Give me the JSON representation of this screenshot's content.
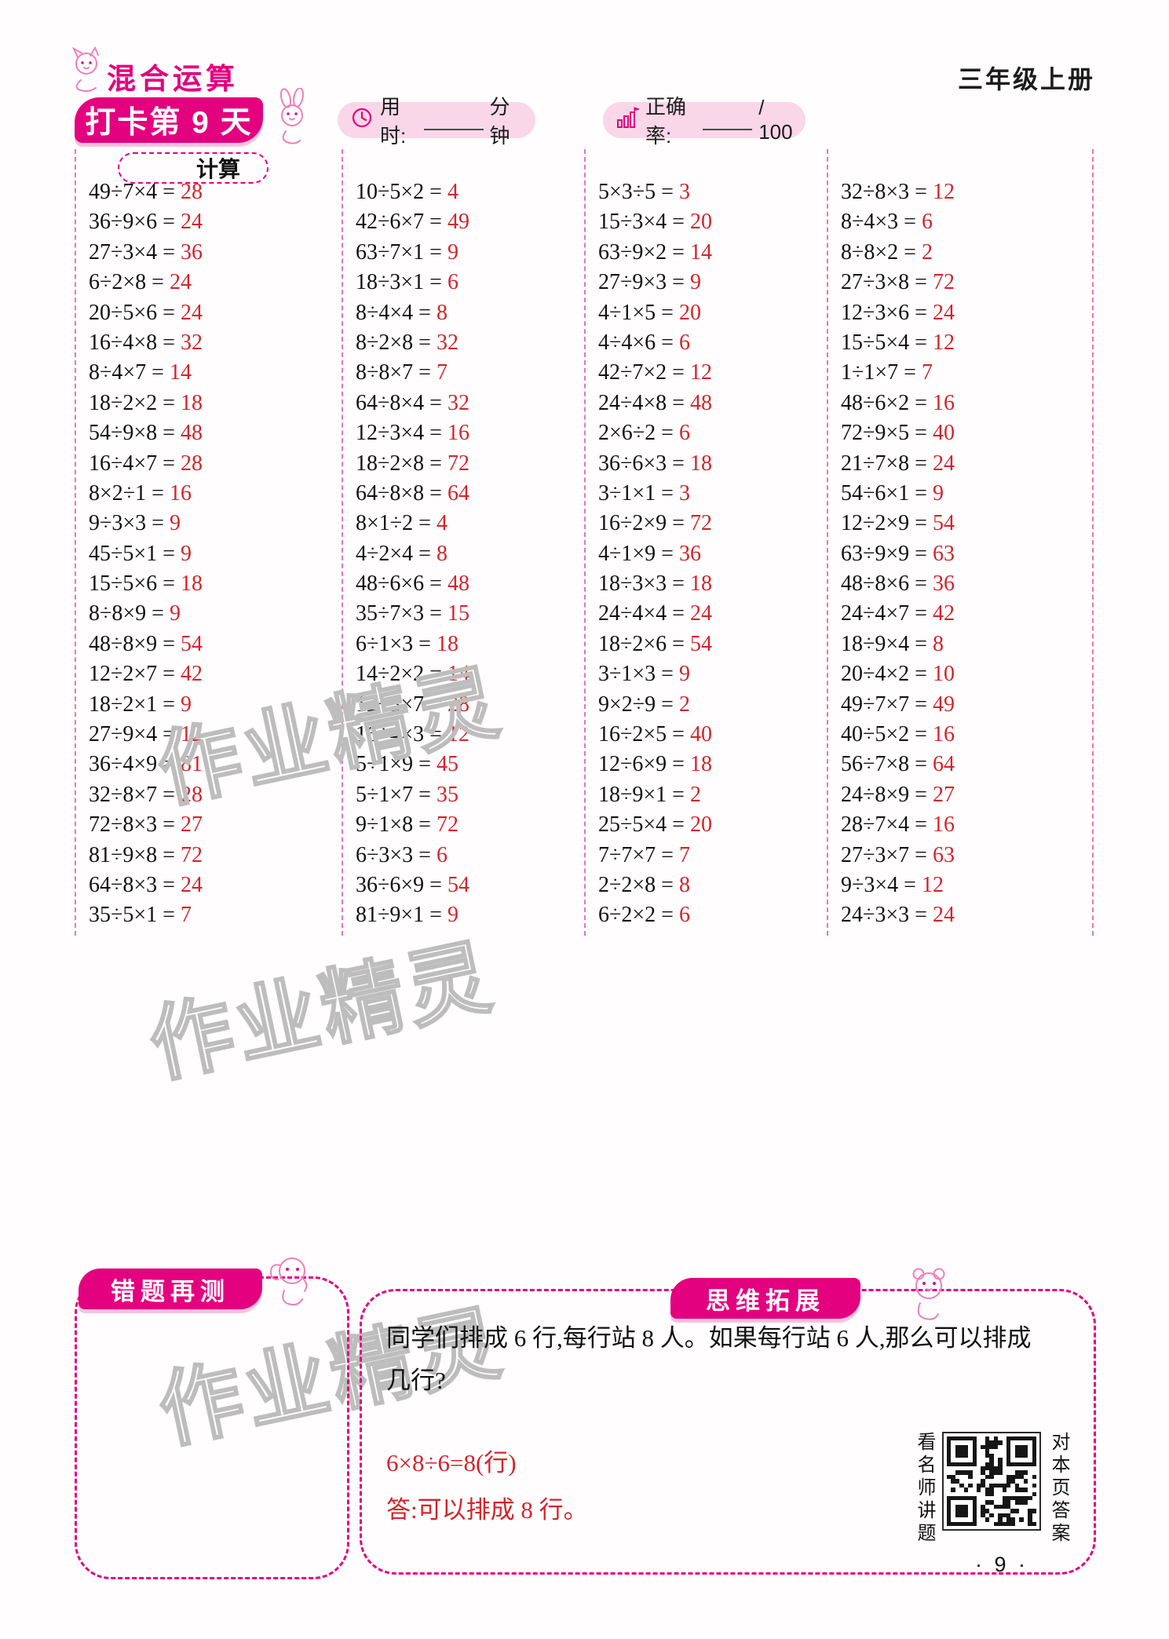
{
  "header": {
    "book_title": "混合运算",
    "grade_label": "三年级上册",
    "day_banner": "打卡第 9 天",
    "time_label": "用时:",
    "time_unit": "分钟",
    "accuracy_label": "正确率:",
    "accuracy_suffix": "/ 100"
  },
  "calc": {
    "section_title": "计算",
    "columns": [
      [
        {
          "q": "49÷7×4",
          "a": "28"
        },
        {
          "q": "36÷9×6",
          "a": "24"
        },
        {
          "q": "27÷3×4",
          "a": "36"
        },
        {
          "q": "6÷2×8",
          "a": "24"
        },
        {
          "q": "20÷5×6",
          "a": "24"
        },
        {
          "q": "16÷4×8",
          "a": "32"
        },
        {
          "q": "8÷4×7",
          "a": "14"
        },
        {
          "q": "18÷2×2",
          "a": "18"
        },
        {
          "q": "54÷9×8",
          "a": "48"
        },
        {
          "q": "16÷4×7",
          "a": "28"
        },
        {
          "q": "8×2÷1",
          "a": "16"
        },
        {
          "q": "9÷3×3",
          "a": "9"
        },
        {
          "q": "45÷5×1",
          "a": "9"
        },
        {
          "q": "15÷5×6",
          "a": "18"
        },
        {
          "q": "8÷8×9",
          "a": "9"
        },
        {
          "q": "48÷8×9",
          "a": "54"
        },
        {
          "q": "12÷2×7",
          "a": "42"
        },
        {
          "q": "18÷2×1",
          "a": "9"
        },
        {
          "q": "27÷9×4",
          "a": "12"
        },
        {
          "q": "36÷4×9",
          "a": "81"
        },
        {
          "q": "32÷8×7",
          "a": "28"
        },
        {
          "q": "72÷8×3",
          "a": "27"
        },
        {
          "q": "81÷9×8",
          "a": "72"
        },
        {
          "q": "64÷8×3",
          "a": "24"
        },
        {
          "q": "35÷5×1",
          "a": "7"
        }
      ],
      [
        {
          "q": "10÷5×2",
          "a": "4"
        },
        {
          "q": "42÷6×7",
          "a": "49"
        },
        {
          "q": "63÷7×1",
          "a": "9"
        },
        {
          "q": "18÷3×1",
          "a": "6"
        },
        {
          "q": "8÷4×4",
          "a": "8"
        },
        {
          "q": "8÷2×8",
          "a": "32"
        },
        {
          "q": "8÷8×7",
          "a": "7"
        },
        {
          "q": "64÷8×4",
          "a": "32"
        },
        {
          "q": "12÷3×4",
          "a": "16"
        },
        {
          "q": "18÷2×8",
          "a": "72"
        },
        {
          "q": "64÷8×8",
          "a": "64"
        },
        {
          "q": "8×1÷2",
          "a": "4"
        },
        {
          "q": "4÷2×4",
          "a": "8"
        },
        {
          "q": "48÷6×6",
          "a": "48"
        },
        {
          "q": "35÷7×3",
          "a": "15"
        },
        {
          "q": "6÷1×3",
          "a": "18"
        },
        {
          "q": "14÷2×2",
          "a": "14"
        },
        {
          "q": "12÷3×7",
          "a": "28"
        },
        {
          "q": "16÷4×3",
          "a": "12"
        },
        {
          "q": "5÷1×9",
          "a": "45"
        },
        {
          "q": "5÷1×7",
          "a": "35"
        },
        {
          "q": "9÷1×8",
          "a": "72"
        },
        {
          "q": "6÷3×3",
          "a": "6"
        },
        {
          "q": "36÷6×9",
          "a": "54"
        },
        {
          "q": "81÷9×1",
          "a": "9"
        }
      ],
      [
        {
          "q": "5×3÷5",
          "a": "3"
        },
        {
          "q": "15÷3×4",
          "a": "20"
        },
        {
          "q": "63÷9×2",
          "a": "14"
        },
        {
          "q": "27÷9×3",
          "a": "9"
        },
        {
          "q": "4÷1×5",
          "a": "20"
        },
        {
          "q": "4÷4×6",
          "a": "6"
        },
        {
          "q": "42÷7×2",
          "a": "12"
        },
        {
          "q": "24÷4×8",
          "a": "48"
        },
        {
          "q": "2×6÷2",
          "a": "6"
        },
        {
          "q": "36÷6×3",
          "a": "18"
        },
        {
          "q": "3÷1×1",
          "a": "3"
        },
        {
          "q": "16÷2×9",
          "a": "72"
        },
        {
          "q": "4÷1×9",
          "a": "36"
        },
        {
          "q": "18÷3×3",
          "a": "18"
        },
        {
          "q": "24÷4×4",
          "a": "24"
        },
        {
          "q": "18÷2×6",
          "a": "54"
        },
        {
          "q": "3÷1×3",
          "a": "9"
        },
        {
          "q": "9×2÷9",
          "a": "2"
        },
        {
          "q": "16÷2×5",
          "a": "40"
        },
        {
          "q": "12÷6×9",
          "a": "18"
        },
        {
          "q": "18÷9×1",
          "a": "2"
        },
        {
          "q": "25÷5×4",
          "a": "20"
        },
        {
          "q": "7÷7×7",
          "a": "7"
        },
        {
          "q": "2÷2×8",
          "a": "8"
        },
        {
          "q": "6÷2×2",
          "a": "6"
        }
      ],
      [
        {
          "q": "32÷8×3",
          "a": "12"
        },
        {
          "q": "8÷4×3",
          "a": "6"
        },
        {
          "q": "8÷8×2",
          "a": "2"
        },
        {
          "q": "27÷3×8",
          "a": "72"
        },
        {
          "q": "12÷3×6",
          "a": "24"
        },
        {
          "q": "15÷5×4",
          "a": "12"
        },
        {
          "q": "1÷1×7",
          "a": "7"
        },
        {
          "q": "48÷6×2",
          "a": "16"
        },
        {
          "q": "72÷9×5",
          "a": "40"
        },
        {
          "q": "21÷7×8",
          "a": "24"
        },
        {
          "q": "54÷6×1",
          "a": "9"
        },
        {
          "q": "12÷2×9",
          "a": "54"
        },
        {
          "q": "63÷9×9",
          "a": "63"
        },
        {
          "q": "48÷8×6",
          "a": "36"
        },
        {
          "q": "24÷4×7",
          "a": "42"
        },
        {
          "q": "18÷9×4",
          "a": "8"
        },
        {
          "q": "20÷4×2",
          "a": "10"
        },
        {
          "q": "49÷7×7",
          "a": "49"
        },
        {
          "q": "40÷5×2",
          "a": "16"
        },
        {
          "q": "56÷7×8",
          "a": "64"
        },
        {
          "q": "24÷8×9",
          "a": "27"
        },
        {
          "q": "28÷7×4",
          "a": "16"
        },
        {
          "q": "27÷3×7",
          "a": "63"
        },
        {
          "q": "9÷3×4",
          "a": "12"
        },
        {
          "q": "24÷3×3",
          "a": "24"
        }
      ]
    ]
  },
  "bottom": {
    "wrong_retest_title": "错题再测",
    "thinking_title": "思维拓展",
    "question_line1": "同学们排成 6 行,每行站 8 人。如果每行站 6 人,那么可以排成",
    "question_line2": "几行?",
    "solution": "6×8÷6=8(行)",
    "answer": "答:可以排成 8 行。"
  },
  "qr_panel": {
    "left_label": "看名师讲题",
    "right_label": "对本页答案"
  },
  "page_number": "· 9 ·",
  "watermark": "作业精灵",
  "colors": {
    "magenta": "#e3017f",
    "answer_red": "#d3242a",
    "pill_pink": "#f9d7e8",
    "watermark_gray": "#bdbdbd"
  }
}
